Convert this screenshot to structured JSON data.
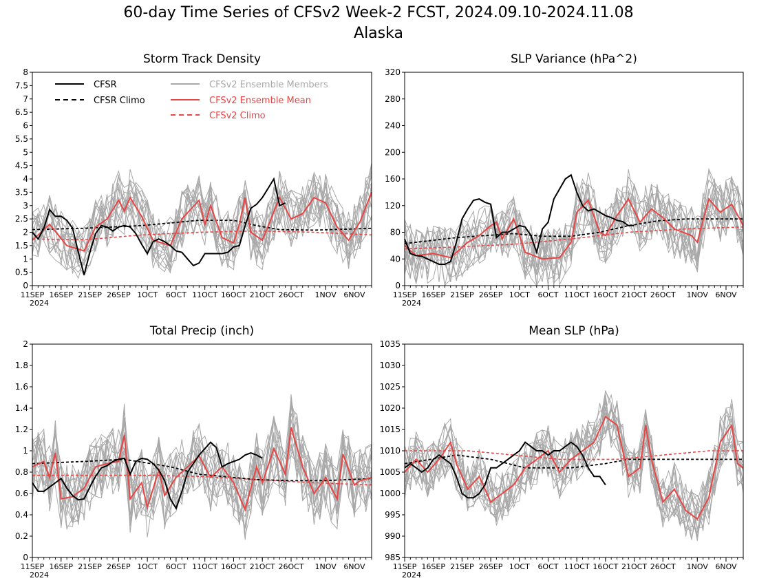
{
  "page": {
    "title": "60-day Time Series of CFSv2 Week-2 FCST, 2024.09.10-2024.11.08",
    "subtitle": "Alaska"
  },
  "legend": {
    "cfsr": "CFSR",
    "cfsr_climo": "CFSR Climo",
    "members": "CFSv2 Ensemble Members",
    "ens_mean": "CFSv2 Ensemble Mean",
    "cfsv2_climo": "CFSv2 Climo"
  },
  "colors": {
    "cfsr": "#000000",
    "members": "#a8a8a8",
    "ens_mean": "#e84545",
    "cfsv2_climo": "#e84545"
  },
  "x_axis": {
    "tick_labels": [
      "11SEP",
      "16SEP",
      "21SEP",
      "26SEP",
      "1OCT",
      "6OCT",
      "11OCT",
      "16OCT",
      "21OCT",
      "26OCT",
      "1NOV",
      "6NOV"
    ],
    "tick_days": [
      1,
      6,
      11,
      16,
      21,
      26,
      31,
      36,
      41,
      46,
      52,
      57
    ],
    "year_label": "2024",
    "day_range": [
      1,
      60
    ]
  },
  "chart_data": [
    {
      "id": "storm",
      "type": "line",
      "title": "Storm Track Density",
      "ylim": [
        0,
        8
      ],
      "yticks": [
        "0",
        "0.5",
        "1",
        "1.5",
        "2",
        "2.5",
        "3",
        "3.5",
        "4",
        "4.5",
        "5",
        "5.5",
        "6",
        "6.5",
        "7",
        "7.5",
        "8"
      ],
      "ytick_values": [
        0,
        0.5,
        1,
        1.5,
        2,
        2.5,
        3,
        3.5,
        4,
        4.5,
        5,
        5.5,
        6,
        6.5,
        7,
        7.5,
        8
      ],
      "ensemble_mean_nodes": [
        [
          1,
          1.7
        ],
        [
          4,
          2.3
        ],
        [
          7,
          1.5
        ],
        [
          10,
          1.3
        ],
        [
          12,
          2.2
        ],
        [
          14,
          2.5
        ],
        [
          16,
          3.2
        ],
        [
          17,
          2.8
        ],
        [
          18,
          3.3
        ],
        [
          20,
          2.6
        ],
        [
          22,
          1.7
        ],
        [
          25,
          1.5
        ],
        [
          27,
          2.5
        ],
        [
          30,
          3.2
        ],
        [
          31,
          2.3
        ],
        [
          32,
          3.0
        ],
        [
          34,
          1.8
        ],
        [
          36,
          1.6
        ],
        [
          37,
          2.3
        ],
        [
          38,
          3.3
        ],
        [
          39,
          2.0
        ],
        [
          41,
          1.7
        ],
        [
          44,
          3.3
        ],
        [
          46,
          2.5
        ],
        [
          48,
          2.7
        ],
        [
          50,
          3.3
        ],
        [
          52,
          3.1
        ],
        [
          54,
          2.2
        ],
        [
          56,
          1.7
        ],
        [
          58,
          2.4
        ],
        [
          60,
          3.5
        ]
      ],
      "members_spread": 1.1,
      "cfsr": [
        2.0,
        1.75,
        2.15,
        2.85,
        2.6,
        2.6,
        2.45,
        2.15,
        1.25,
        0.4,
        1.25,
        1.95,
        2.25,
        2.2,
        2.05,
        2.2,
        2.25,
        2.2,
        1.95,
        1.55,
        1.2,
        1.65,
        1.75,
        1.65,
        1.5,
        1.3,
        1.25,
        1.0,
        0.75,
        0.85,
        1.2,
        1.2,
        1.2,
        1.2,
        1.25,
        1.45,
        1.5,
        2.25,
        2.9,
        3.05,
        3.3,
        3.65,
        4.0,
        3.0,
        3.1
      ],
      "cfsr_climo": [
        [
          1,
          2.1
        ],
        [
          10,
          2.15
        ],
        [
          20,
          2.25
        ],
        [
          30,
          2.45
        ],
        [
          36,
          2.45
        ],
        [
          40,
          2.25
        ],
        [
          44,
          2.1
        ],
        [
          50,
          2.08
        ],
        [
          56,
          2.12
        ],
        [
          60,
          2.15
        ]
      ],
      "cfsv2_climo": [
        [
          1,
          1.75
        ],
        [
          10,
          1.72
        ],
        [
          20,
          1.9
        ],
        [
          30,
          2.0
        ],
        [
          40,
          2.05
        ],
        [
          50,
          2.0
        ],
        [
          60,
          1.9
        ]
      ]
    },
    {
      "id": "slpvar",
      "type": "line",
      "title": "SLP Variance (hPa^2)",
      "ylim": [
        0,
        320
      ],
      "yticks": [
        "0",
        "40",
        "80",
        "120",
        "160",
        "200",
        "240",
        "280",
        "320"
      ],
      "ytick_values": [
        0,
        40,
        80,
        120,
        160,
        200,
        240,
        280,
        320
      ],
      "ensemble_mean_nodes": [
        [
          1,
          60
        ],
        [
          3,
          45
        ],
        [
          6,
          48
        ],
        [
          9,
          42
        ],
        [
          12,
          65
        ],
        [
          14,
          75
        ],
        [
          16,
          90
        ],
        [
          17,
          95
        ],
        [
          18,
          70
        ],
        [
          19,
          85
        ],
        [
          20,
          100
        ],
        [
          22,
          50
        ],
        [
          25,
          40
        ],
        [
          28,
          42
        ],
        [
          30,
          65
        ],
        [
          31,
          110
        ],
        [
          33,
          128
        ],
        [
          35,
          80
        ],
        [
          36,
          75
        ],
        [
          38,
          105
        ],
        [
          40,
          130
        ],
        [
          42,
          95
        ],
        [
          44,
          115
        ],
        [
          46,
          102
        ],
        [
          48,
          85
        ],
        [
          51,
          75
        ],
        [
          52,
          65
        ],
        [
          54,
          130
        ],
        [
          56,
          110
        ],
        [
          58,
          122
        ],
        [
          60,
          90
        ]
      ],
      "members_spread": 45,
      "cfsr": [
        70,
        48,
        45,
        44,
        40,
        36,
        32,
        32,
        36,
        65,
        100,
        115,
        128,
        130,
        125,
        122,
        72,
        80,
        80,
        85,
        90,
        88,
        75,
        50,
        85,
        95,
        130,
        145,
        160,
        166,
        140,
        120,
        112,
        115,
        110,
        105,
        102,
        98,
        96,
        90,
        90
      ],
      "cfsr_climo": [
        [
          1,
          63
        ],
        [
          10,
          72
        ],
        [
          20,
          78
        ],
        [
          25,
          74
        ],
        [
          30,
          74
        ],
        [
          35,
          80
        ],
        [
          40,
          90
        ],
        [
          45,
          97
        ],
        [
          50,
          100
        ],
        [
          55,
          100
        ],
        [
          60,
          100
        ]
      ],
      "cfsv2_climo": [
        [
          1,
          55
        ],
        [
          10,
          58
        ],
        [
          20,
          62
        ],
        [
          30,
          70
        ],
        [
          40,
          80
        ],
        [
          50,
          85
        ],
        [
          60,
          88
        ]
      ]
    },
    {
      "id": "precip",
      "type": "line",
      "title": "Total Precip (inch)",
      "ylim": [
        0,
        2
      ],
      "yticks": [
        "0",
        "0.2",
        "0.4",
        "0.6",
        "0.8",
        "1",
        "1.2",
        "1.4",
        "1.6",
        "1.8",
        "2"
      ],
      "ytick_values": [
        0,
        0.2,
        0.4,
        0.6,
        0.8,
        1.0,
        1.2,
        1.4,
        1.6,
        1.8,
        2.0
      ],
      "ensemble_mean_nodes": [
        [
          1,
          0.85
        ],
        [
          3,
          0.9
        ],
        [
          4,
          0.75
        ],
        [
          5,
          0.98
        ],
        [
          6,
          0.55
        ],
        [
          8,
          0.57
        ],
        [
          10,
          0.65
        ],
        [
          12,
          0.85
        ],
        [
          14,
          0.88
        ],
        [
          16,
          0.9
        ],
        [
          17,
          1.15
        ],
        [
          18,
          0.55
        ],
        [
          20,
          0.7
        ],
        [
          21,
          0.47
        ],
        [
          23,
          0.82
        ],
        [
          24,
          0.58
        ],
        [
          26,
          0.75
        ],
        [
          28,
          0.85
        ],
        [
          30,
          0.95
        ],
        [
          32,
          0.75
        ],
        [
          34,
          0.85
        ],
        [
          36,
          0.7
        ],
        [
          38,
          0.45
        ],
        [
          40,
          0.85
        ],
        [
          41,
          0.7
        ],
        [
          43,
          1.02
        ],
        [
          45,
          0.78
        ],
        [
          46,
          1.22
        ],
        [
          48,
          0.85
        ],
        [
          50,
          0.6
        ],
        [
          52,
          0.75
        ],
        [
          54,
          0.55
        ],
        [
          55,
          0.97
        ],
        [
          57,
          0.68
        ],
        [
          58,
          0.72
        ],
        [
          60,
          0.75
        ]
      ],
      "members_spread": 0.32,
      "cfsr": [
        0.7,
        0.62,
        0.62,
        0.66,
        0.7,
        0.74,
        0.65,
        0.58,
        0.54,
        0.55,
        0.66,
        0.76,
        0.84,
        0.86,
        0.9,
        0.92,
        0.93,
        0.78,
        0.9,
        0.93,
        0.92,
        0.88,
        0.82,
        0.72,
        0.55,
        0.46,
        0.62,
        0.8,
        0.88,
        0.96,
        1.02,
        1.08,
        1.03,
        0.85,
        0.88,
        0.9,
        0.92,
        0.96,
        0.98,
        0.96,
        0.93
      ],
      "cfsr_climo": [
        [
          1,
          0.88
        ],
        [
          10,
          0.9
        ],
        [
          17,
          0.92
        ],
        [
          25,
          0.85
        ],
        [
          30,
          0.78
        ],
        [
          36,
          0.75
        ],
        [
          40,
          0.73
        ],
        [
          46,
          0.72
        ],
        [
          52,
          0.72
        ],
        [
          60,
          0.74
        ]
      ],
      "cfsv2_climo": [
        [
          1,
          0.77
        ],
        [
          10,
          0.77
        ],
        [
          20,
          0.77
        ],
        [
          30,
          0.76
        ],
        [
          40,
          0.73
        ],
        [
          50,
          0.7
        ],
        [
          60,
          0.68
        ]
      ]
    },
    {
      "id": "mslp",
      "type": "line",
      "title": "Mean SLP (hPa)",
      "ylim": [
        985,
        1035
      ],
      "yticks": [
        "985",
        "990",
        "995",
        "1000",
        "1005",
        "1010",
        "1015",
        "1020",
        "1025",
        "1030",
        "1035"
      ],
      "ytick_values": [
        985,
        990,
        995,
        1000,
        1005,
        1010,
        1015,
        1020,
        1025,
        1030,
        1035
      ],
      "ensemble_mean_nodes": [
        [
          1,
          1005
        ],
        [
          3,
          1008
        ],
        [
          5,
          1005
        ],
        [
          7,
          1008
        ],
        [
          9,
          1012
        ],
        [
          10,
          1007
        ],
        [
          12,
          1001
        ],
        [
          14,
          1004
        ],
        [
          16,
          998
        ],
        [
          18,
          1000
        ],
        [
          20,
          1002
        ],
        [
          22,
          1006
        ],
        [
          24,
          1008
        ],
        [
          26,
          1010
        ],
        [
          28,
          1005
        ],
        [
          30,
          1008
        ],
        [
          32,
          1010
        ],
        [
          34,
          1012
        ],
        [
          36,
          1018
        ],
        [
          38,
          1016
        ],
        [
          40,
          1004
        ],
        [
          42,
          1006
        ],
        [
          43,
          1016
        ],
        [
          44,
          1008
        ],
        [
          46,
          998
        ],
        [
          48,
          1001
        ],
        [
          50,
          996
        ],
        [
          52,
          994
        ],
        [
          54,
          999
        ],
        [
          56,
          1012
        ],
        [
          58,
          1016
        ],
        [
          59,
          1007
        ],
        [
          60,
          1006
        ]
      ],
      "members_spread": 6.5,
      "cfsr": [
        1006,
        1007,
        1006,
        1005,
        1006,
        1008,
        1009,
        1008,
        1007,
        1004,
        1000,
        999,
        999,
        1000,
        1002,
        1006,
        1006,
        1007,
        1008,
        1009,
        1010,
        1012,
        1011,
        1010,
        1010,
        1009,
        1010,
        1010,
        1011,
        1012,
        1011,
        1009,
        1006,
        1004,
        1004,
        1002
      ],
      "cfsr_climo": [
        [
          1,
          1007
        ],
        [
          10,
          1009
        ],
        [
          16,
          1008
        ],
        [
          22,
          1006
        ],
        [
          30,
          1006
        ],
        [
          36,
          1007
        ],
        [
          40,
          1008
        ],
        [
          46,
          1008
        ],
        [
          52,
          1008
        ],
        [
          60,
          1008
        ]
      ],
      "cfsv2_climo": [
        [
          1,
          1010
        ],
        [
          12,
          1010
        ],
        [
          20,
          1009
        ],
        [
          28,
          1008
        ],
        [
          38,
          1008
        ],
        [
          46,
          1009
        ],
        [
          54,
          1010
        ],
        [
          60,
          1010
        ]
      ]
    }
  ]
}
